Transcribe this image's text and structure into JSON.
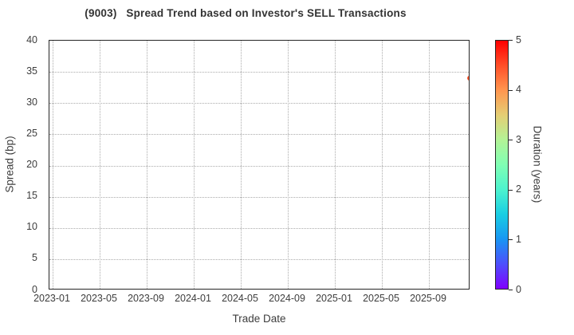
{
  "chart": {
    "title": "(9003)   Spread Trend based on Investor's SELL Transactions"
  },
  "chart_data": {
    "type": "scatter",
    "title": "(9003)   Spread Trend based on Investor's SELL Transactions",
    "xlabel": "Trade Date",
    "ylabel": "Spread (bp)",
    "x_tick_labels": [
      "2023-01",
      "2023-05",
      "2023-09",
      "2024-01",
      "2024-05",
      "2024-09",
      "2025-01",
      "2025-05",
      "2025-09"
    ],
    "y_ticks": [
      0,
      5,
      10,
      15,
      20,
      25,
      30,
      35,
      40
    ],
    "ylim": [
      0,
      40
    ],
    "grid": "dotted",
    "legend_position": "none",
    "points": [
      {
        "date": "2025-12-15",
        "spread_bp": 34.0,
        "duration_years": 4.45
      }
    ],
    "colorbar": {
      "label": "Duration (years)",
      "min": 0,
      "max": 5,
      "ticks": [
        0,
        1,
        2,
        3,
        4,
        5
      ],
      "colormap": "rainbow"
    }
  },
  "colors": {
    "point": "#FF562C",
    "spine": "#262626",
    "grid": "#ababab",
    "text": "#3d3d3d",
    "title": "#333333"
  }
}
